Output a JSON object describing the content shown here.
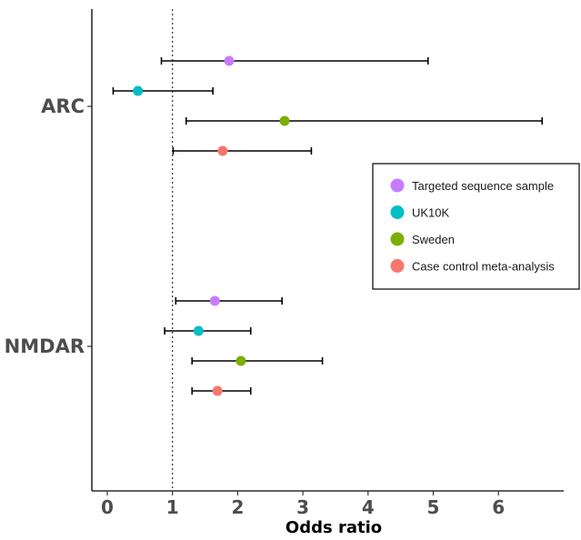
{
  "chart_data": {
    "type": "scatter",
    "title": "",
    "xlabel": "Odds ratio",
    "ylabel": "",
    "xlim": [
      -0.25,
      7.05
    ],
    "x_ticks": [
      "0",
      "1",
      "2",
      "3",
      "4",
      "5",
      "6"
    ],
    "reference_line": {
      "x": 1,
      "style": "dotted"
    },
    "grid": false,
    "legend_position": "right",
    "groups": [
      {
        "label": "ARC"
      },
      {
        "label": "NMDAR"
      }
    ],
    "series": [
      {
        "name": "Targeted sequence sample",
        "color": "#c77cff",
        "points": [
          {
            "group": "ARC",
            "or": 1.87,
            "lo": 0.83,
            "hi": 4.92
          },
          {
            "group": "NMDAR",
            "or": 1.65,
            "lo": 1.05,
            "hi": 2.68
          }
        ]
      },
      {
        "name": "UK10K",
        "color": "#00bfc4",
        "points": [
          {
            "group": "ARC",
            "or": 0.47,
            "lo": 0.09,
            "hi": 1.62
          },
          {
            "group": "NMDAR",
            "or": 1.4,
            "lo": 0.88,
            "hi": 2.2
          }
        ]
      },
      {
        "name": "Sweden",
        "color": "#7cae00",
        "points": [
          {
            "group": "ARC",
            "or": 2.72,
            "lo": 1.21,
            "hi": 6.67
          },
          {
            "group": "NMDAR",
            "or": 2.05,
            "lo": 1.3,
            "hi": 3.3
          }
        ]
      },
      {
        "name": "Case control meta-analysis",
        "color": "#f8766d",
        "points": [
          {
            "group": "ARC",
            "or": 1.77,
            "lo": 1.01,
            "hi": 3.13
          },
          {
            "group": "NMDAR",
            "or": 1.69,
            "lo": 1.3,
            "hi": 2.2
          }
        ]
      }
    ]
  }
}
